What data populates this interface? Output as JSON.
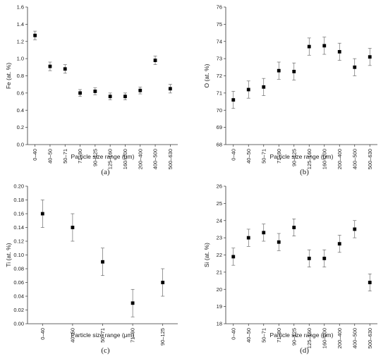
{
  "chart_data": [
    {
      "type": "scatter",
      "panel_label": "(a)",
      "ylabel": "Fe (at. %)",
      "xlabel": "Particle size range (μm)",
      "categories": [
        "0–40",
        "40–50",
        "50–71",
        "71–90",
        "90–125",
        "125–160",
        "160–200",
        "200–400",
        "400–500",
        "500–630"
      ],
      "values": [
        1.27,
        0.91,
        0.88,
        0.6,
        0.62,
        0.56,
        0.56,
        0.63,
        0.98,
        0.65
      ],
      "errors": [
        0.05,
        0.05,
        0.05,
        0.04,
        0.04,
        0.04,
        0.04,
        0.04,
        0.05,
        0.05
      ],
      "ylim": [
        0.0,
        1.6
      ],
      "yticks": [
        "0.0",
        "0.2",
        "0.4",
        "0.6",
        "0.8",
        "1.0",
        "1.2",
        "1.4",
        "1.6"
      ]
    },
    {
      "type": "scatter",
      "panel_label": "(b)",
      "ylabel": "O (at. %)",
      "xlabel": "Particle size range (μm)",
      "categories": [
        "0–40",
        "40–50",
        "50–71",
        "71–90",
        "90–125",
        "125–160",
        "160–200",
        "200–400",
        "400–500",
        "500–630"
      ],
      "values": [
        70.6,
        71.2,
        71.35,
        72.3,
        72.25,
        73.7,
        73.75,
        73.4,
        72.5,
        73.1
      ],
      "errors": [
        0.5,
        0.5,
        0.5,
        0.5,
        0.5,
        0.5,
        0.5,
        0.5,
        0.5,
        0.5
      ],
      "ylim": [
        68,
        76
      ],
      "yticks": [
        "68",
        "69",
        "70",
        "71",
        "72",
        "73",
        "74",
        "75",
        "76"
      ]
    },
    {
      "type": "scatter",
      "panel_label": "(c)",
      "ylabel": "Ti (at. %)",
      "xlabel": "Particle size range (μm)",
      "categories": [
        "0–40",
        "40–50",
        "50–71",
        "71–90",
        "90–125"
      ],
      "values": [
        0.16,
        0.14,
        0.09,
        0.03,
        0.06
      ],
      "errors": [
        0.02,
        0.02,
        0.02,
        0.02,
        0.02
      ],
      "ylim": [
        0.0,
        0.2
      ],
      "yticks": [
        "0.00",
        "0.02",
        "0.04",
        "0.06",
        "0.08",
        "0.10",
        "0.12",
        "0.14",
        "0.16",
        "0.18",
        "0.20"
      ]
    },
    {
      "type": "scatter",
      "panel_label": "(d)",
      "ylabel": "Si (at. %)",
      "xlabel": "Particle size range (μm)",
      "categories": [
        "0–40",
        "40–50",
        "50–71",
        "71–90",
        "90–125",
        "125–160",
        "160–200",
        "200–400",
        "400–500",
        "500–630"
      ],
      "values": [
        21.9,
        23.0,
        23.3,
        22.75,
        23.6,
        21.8,
        21.8,
        22.65,
        23.5,
        20.4
      ],
      "errors": [
        0.5,
        0.5,
        0.5,
        0.5,
        0.5,
        0.5,
        0.5,
        0.5,
        0.5,
        0.5
      ],
      "ylim": [
        18,
        26
      ],
      "yticks": [
        "18",
        "19",
        "20",
        "21",
        "22",
        "23",
        "24",
        "25",
        "26"
      ]
    }
  ],
  "colors": {
    "marker": "#000000",
    "axis": "#333333",
    "error_bar": "#555555"
  }
}
